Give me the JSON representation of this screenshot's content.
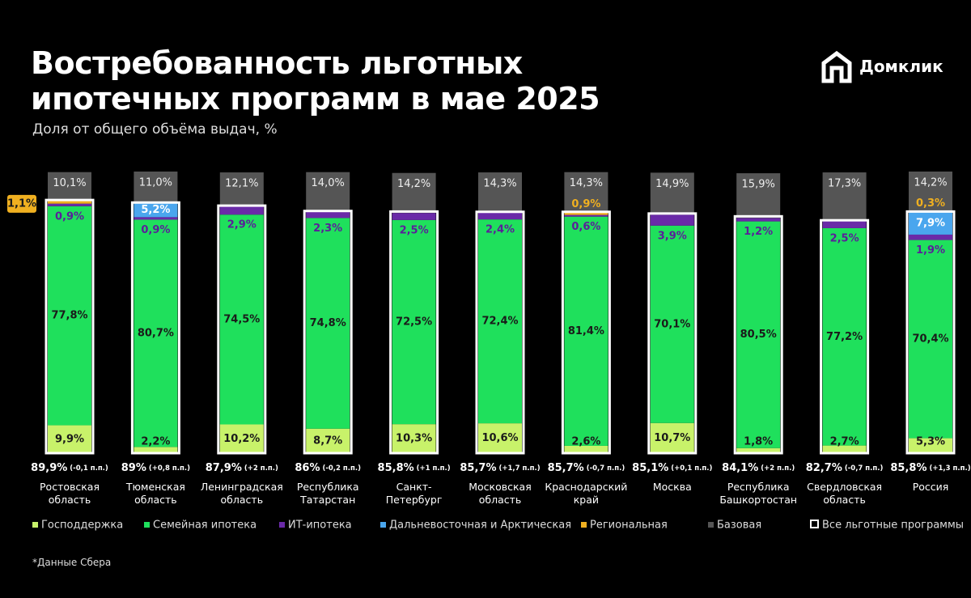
{
  "chart_data": {
    "type": "stacked-bar",
    "title": "Востребованность льготных ипотечных программ в мае 2025",
    "subtitle": "Доля от общего объёма выдач, %",
    "logo": "Домклик",
    "footnote": "*Данные Сбера",
    "categories": [
      "Ростовская область",
      "Тюменская область",
      "Ленинградская область",
      "Республика Татарстан",
      "Санкт-Петербург",
      "Московская область",
      "Краснодарский край",
      "Москва",
      "Республика Башкортостан",
      "Свердловская область",
      "Россия"
    ],
    "series": [
      {
        "name": "Господдержка",
        "color": "#c8f26a",
        "values": [
          9.9,
          2.2,
          10.2,
          8.7,
          10.3,
          10.6,
          2.6,
          10.7,
          1.8,
          2.7,
          5.3
        ],
        "value_labels": [
          "9,9%",
          "2,2%",
          "10,2%",
          "8,7%",
          "10,3%",
          "10,6%",
          "2,6%",
          "10,7%",
          "1,8%",
          "2,7%",
          "5,3%"
        ]
      },
      {
        "name": "Семейная ипотека",
        "color": "#1fe05c",
        "values": [
          77.8,
          80.7,
          74.5,
          74.8,
          72.5,
          72.4,
          81.4,
          70.1,
          80.5,
          77.2,
          70.4
        ],
        "value_labels": [
          "77,8%",
          "80,7%",
          "74,5%",
          "74,8%",
          "72,5%",
          "72,4%",
          "81,4%",
          "70,1%",
          "80,5%",
          "77,2%",
          "70,4%"
        ]
      },
      {
        "name": "ИТ-ипотека",
        "color": "#6a2aa8",
        "values": [
          0.9,
          0.9,
          2.9,
          2.3,
          2.5,
          2.4,
          0.6,
          3.9,
          1.2,
          2.5,
          1.9
        ],
        "value_labels": [
          "0,9%",
          "0,9%",
          "2,9%",
          "2,3%",
          "2,5%",
          "2,4%",
          "0,6%",
          "3,9%",
          "1,2%",
          "2,5%",
          "1,9%"
        ]
      },
      {
        "name": "Дальневосточная и Арктическая",
        "color": "#4aa6ee",
        "values": [
          null,
          5.2,
          null,
          null,
          null,
          null,
          null,
          null,
          null,
          null,
          7.9
        ],
        "value_labels": [
          null,
          "5,2%",
          null,
          null,
          null,
          null,
          null,
          null,
          null,
          null,
          "7,9%"
        ]
      },
      {
        "name": "Региональная",
        "color": "#f0b020",
        "values": [
          1.1,
          null,
          null,
          null,
          null,
          null,
          0.9,
          null,
          null,
          null,
          0.3
        ],
        "value_labels": [
          "1,1%",
          null,
          null,
          null,
          null,
          null,
          "0,9%",
          null,
          null,
          null,
          "0,3%"
        ]
      },
      {
        "name": "Базовая",
        "color": "#555555",
        "values": [
          10.1,
          11.0,
          12.1,
          14.0,
          14.2,
          14.3,
          14.3,
          14.9,
          15.9,
          17.3,
          14.2
        ],
        "value_labels": [
          "10,1%",
          "11,0%",
          "12,1%",
          "14,0%",
          "14,2%",
          "14,3%",
          "14,3%",
          "14,9%",
          "15,9%",
          "17,3%",
          "14,2%"
        ]
      }
    ],
    "total_name": "Все льготные программы",
    "totals": [
      {
        "value": 89.9,
        "label": "89,9%"
      },
      {
        "value": 89,
        "label": "89%"
      },
      {
        "value": 87.9,
        "label": "87,9%"
      },
      {
        "value": 86,
        "label": "86%"
      },
      {
        "value": 85.8,
        "label": "85,8%"
      },
      {
        "value": 85.7,
        "label": "85,7%"
      },
      {
        "value": 85.7,
        "label": "85,7%"
      },
      {
        "value": 85.1,
        "label": "85,1%"
      },
      {
        "value": 84.1,
        "label": "84,1%"
      },
      {
        "value": 82.7,
        "label": "82,7%"
      },
      {
        "value": 85.8,
        "label": "85,8%"
      }
    ],
    "total_changes": [
      "(-0,1 п.п.)",
      "(+0,8 п.п.)",
      "(+2 п.п.)",
      "(-0,2 п.п.)",
      "(+1 п.п.)",
      "(+1,7 п.п.)",
      "(-0,7 п.п.)",
      "(+0,1 п.п.)",
      "(+2 п.п.)",
      "(-0,7 п.п.)",
      "(+1,3 п.п.)"
    ]
  }
}
